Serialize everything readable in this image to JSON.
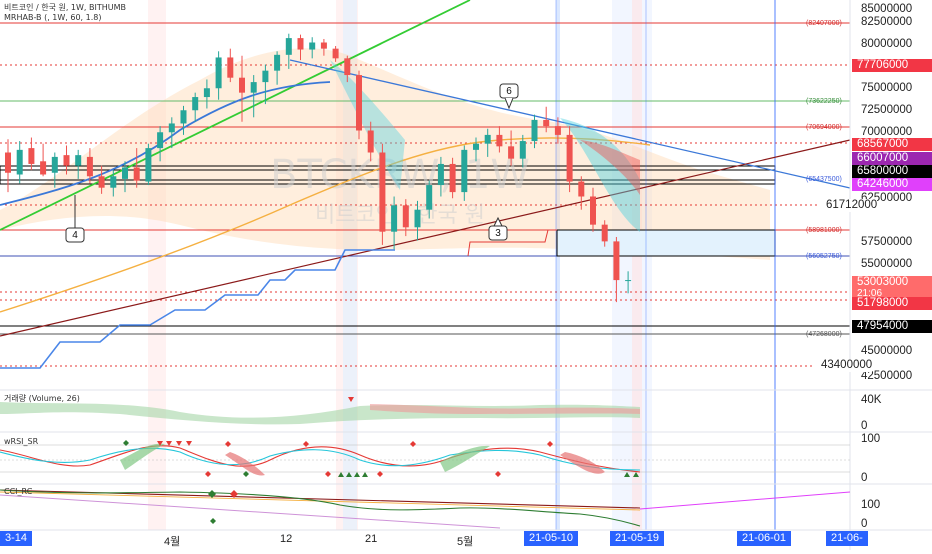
{
  "chart": {
    "symbol_title": "비트코인 / 한국 원, 1W, BITHUMB",
    "indicator_title": "MRHAB-B (, 1W, 60, 1.8)",
    "watermark_symbol": "BTCKRW, 1W",
    "watermark_name": "비트코인 / 한국 원"
  },
  "price_axis": [
    {
      "label": "85000000"
    },
    {
      "label": "82500000"
    },
    {
      "label": "80000000"
    },
    {
      "label": "75000000"
    },
    {
      "label": "72500000"
    },
    {
      "label": "70000000"
    },
    {
      "label": "62500000"
    },
    {
      "label": "61712000"
    },
    {
      "label": "57500000"
    },
    {
      "label": "55000000"
    },
    {
      "label": "45000000"
    },
    {
      "label": "42500000"
    },
    {
      "label": "43400000"
    }
  ],
  "price_tags": [
    {
      "label": "77706000",
      "bg": "#f23645",
      "fg": "#ffffff"
    },
    {
      "label": "68567000",
      "bg": "#f23645",
      "fg": "#ffffff"
    },
    {
      "label": "66007000",
      "bg": "#9c27b0",
      "fg": "#ffffff"
    },
    {
      "label": "65800000",
      "bg": "#000000",
      "fg": "#ffffff"
    },
    {
      "label": "64246000",
      "bg": "#e040fb",
      "fg": "#ffffff"
    },
    {
      "label": "53003000",
      "bg": "#ff6b6b",
      "fg": "#ffffff",
      "sub": "21:06"
    },
    {
      "label": "51798000",
      "bg": "#f23645",
      "fg": "#ffffff"
    },
    {
      "label": "47954000",
      "bg": "#000000",
      "fg": "#ffffff"
    }
  ],
  "level_labels": [
    {
      "label": "(82407000)",
      "color": "#d32f2f"
    },
    {
      "label": "(73622250)",
      "color": "#388e3c"
    },
    {
      "label": "(70694000)",
      "color": "#d32f2f"
    },
    {
      "label": "(65437500)",
      "color": "#3b5bdb"
    },
    {
      "label": "(58981000)",
      "color": "#d32f2f"
    },
    {
      "label": "(56052750)",
      "color": "#3b5bdb"
    },
    {
      "label": "(47268000)",
      "color": "#555555"
    }
  ],
  "wave_labels": [
    {
      "label": "6"
    },
    {
      "label": "4"
    },
    {
      "label": "3"
    }
  ],
  "volume_panel": {
    "title": "거래량 (Volume, 26)",
    "axis": [
      "40K",
      "0"
    ]
  },
  "rsi_panel": {
    "title": "wRSI_SR",
    "axis": [
      "100",
      "0"
    ]
  },
  "third_panel": {
    "title": "CCI_RC",
    "axis": [
      "100",
      "0"
    ]
  },
  "time_axis": [
    {
      "label": "3-14"
    },
    {
      "label": "4월"
    },
    {
      "label": "12"
    },
    {
      "label": "21"
    },
    {
      "label": "5월"
    },
    {
      "label": "21-05-10"
    },
    {
      "label": "21-05-19"
    },
    {
      "label": "21-06-01"
    },
    {
      "label": "21-06-"
    }
  ],
  "chart_data": {
    "type": "candlestick",
    "title": "비트코인 / 한국 원, 1W, BITHUMB",
    "xlabel": "",
    "ylabel": "",
    "ylim": [
      41000000,
      87000000
    ],
    "candles": [
      {
        "o": 67500000,
        "h": 69000000,
        "l": 63000000,
        "c": 65200000
      },
      {
        "o": 65000000,
        "h": 68800000,
        "l": 64000000,
        "c": 67800000
      },
      {
        "o": 68000000,
        "h": 69200000,
        "l": 65500000,
        "c": 66200000
      },
      {
        "o": 66500000,
        "h": 68500000,
        "l": 64800000,
        "c": 65000000
      },
      {
        "o": 65200000,
        "h": 67500000,
        "l": 63500000,
        "c": 67000000
      },
      {
        "o": 67200000,
        "h": 68300000,
        "l": 65000000,
        "c": 66000000
      },
      {
        "o": 66000000,
        "h": 67800000,
        "l": 64500000,
        "c": 67200000
      },
      {
        "o": 67000000,
        "h": 68000000,
        "l": 64000000,
        "c": 64800000
      },
      {
        "o": 64800000,
        "h": 66000000,
        "l": 62800000,
        "c": 63500000
      },
      {
        "o": 63500000,
        "h": 65500000,
        "l": 62500000,
        "c": 64800000
      },
      {
        "o": 64500000,
        "h": 66500000,
        "l": 63000000,
        "c": 65800000
      },
      {
        "o": 65800000,
        "h": 68000000,
        "l": 63500000,
        "c": 64300000
      },
      {
        "o": 64200000,
        "h": 68500000,
        "l": 63800000,
        "c": 68000000
      },
      {
        "o": 68000000,
        "h": 70500000,
        "l": 66500000,
        "c": 69800000
      },
      {
        "o": 69800000,
        "h": 71500000,
        "l": 68000000,
        "c": 70800000
      },
      {
        "o": 70800000,
        "h": 72800000,
        "l": 69500000,
        "c": 72300000
      },
      {
        "o": 72300000,
        "h": 74300000,
        "l": 71000000,
        "c": 73800000
      },
      {
        "o": 73800000,
        "h": 75800000,
        "l": 72500000,
        "c": 74800000
      },
      {
        "o": 74800000,
        "h": 79000000,
        "l": 73500000,
        "c": 78300000
      },
      {
        "o": 78300000,
        "h": 79300000,
        "l": 75500000,
        "c": 76000000
      },
      {
        "o": 76000000,
        "h": 78500000,
        "l": 71000000,
        "c": 74300000
      },
      {
        "o": 74300000,
        "h": 76300000,
        "l": 71500000,
        "c": 75500000
      },
      {
        "o": 75500000,
        "h": 77500000,
        "l": 73000000,
        "c": 76800000
      },
      {
        "o": 76800000,
        "h": 79000000,
        "l": 75200000,
        "c": 78600000
      },
      {
        "o": 78600000,
        "h": 81000000,
        "l": 77000000,
        "c": 80500000
      },
      {
        "o": 80500000,
        "h": 80900000,
        "l": 78000000,
        "c": 79200000
      },
      {
        "o": 79200000,
        "h": 80600000,
        "l": 78200000,
        "c": 80000000
      },
      {
        "o": 80000000,
        "h": 80400000,
        "l": 78500000,
        "c": 79300000
      },
      {
        "o": 79300000,
        "h": 79600000,
        "l": 77800000,
        "c": 78200000
      },
      {
        "o": 78200000,
        "h": 78500000,
        "l": 75500000,
        "c": 76300000
      },
      {
        "o": 76300000,
        "h": 76800000,
        "l": 69000000,
        "c": 70000000
      },
      {
        "o": 70000000,
        "h": 71000000,
        "l": 66500000,
        "c": 67500000
      },
      {
        "o": 67500000,
        "h": 68500000,
        "l": 57000000,
        "c": 58500000
      },
      {
        "o": 58500000,
        "h": 62500000,
        "l": 56500000,
        "c": 61500000
      },
      {
        "o": 61500000,
        "h": 62200000,
        "l": 58000000,
        "c": 59000000
      },
      {
        "o": 59000000,
        "h": 62000000,
        "l": 57500000,
        "c": 61000000
      },
      {
        "o": 61000000,
        "h": 64300000,
        "l": 60000000,
        "c": 63800000
      },
      {
        "o": 63800000,
        "h": 67000000,
        "l": 62500000,
        "c": 66200000
      },
      {
        "o": 66200000,
        "h": 66900000,
        "l": 62300000,
        "c": 63000000
      },
      {
        "o": 63000000,
        "h": 68300000,
        "l": 62000000,
        "c": 67800000
      },
      {
        "o": 67800000,
        "h": 69200000,
        "l": 66500000,
        "c": 68500000
      },
      {
        "o": 68500000,
        "h": 70200000,
        "l": 67000000,
        "c": 69500000
      },
      {
        "o": 69500000,
        "h": 70500000,
        "l": 67500000,
        "c": 68200000
      },
      {
        "o": 68200000,
        "h": 70000000,
        "l": 66000000,
        "c": 66800000
      },
      {
        "o": 66800000,
        "h": 69500000,
        "l": 65800000,
        "c": 68800000
      },
      {
        "o": 68800000,
        "h": 71800000,
        "l": 68000000,
        "c": 71200000
      },
      {
        "o": 71200000,
        "h": 72700000,
        "l": 69800000,
        "c": 70500000
      },
      {
        "o": 70500000,
        "h": 71500000,
        "l": 68500000,
        "c": 69500000
      },
      {
        "o": 69500000,
        "h": 70500000,
        "l": 63000000,
        "c": 64200000
      },
      {
        "o": 64200000,
        "h": 64800000,
        "l": 61000000,
        "c": 62500000
      },
      {
        "o": 62500000,
        "h": 63500000,
        "l": 58500000,
        "c": 59300000
      },
      {
        "o": 59300000,
        "h": 59800000,
        "l": 56800000,
        "c": 57400000
      },
      {
        "o": 57400000,
        "h": 57900000,
        "l": 50500000,
        "c": 53000000
      },
      {
        "o": 53000000,
        "h": 54000000,
        "l": 51500000,
        "c": 53003000
      }
    ]
  }
}
